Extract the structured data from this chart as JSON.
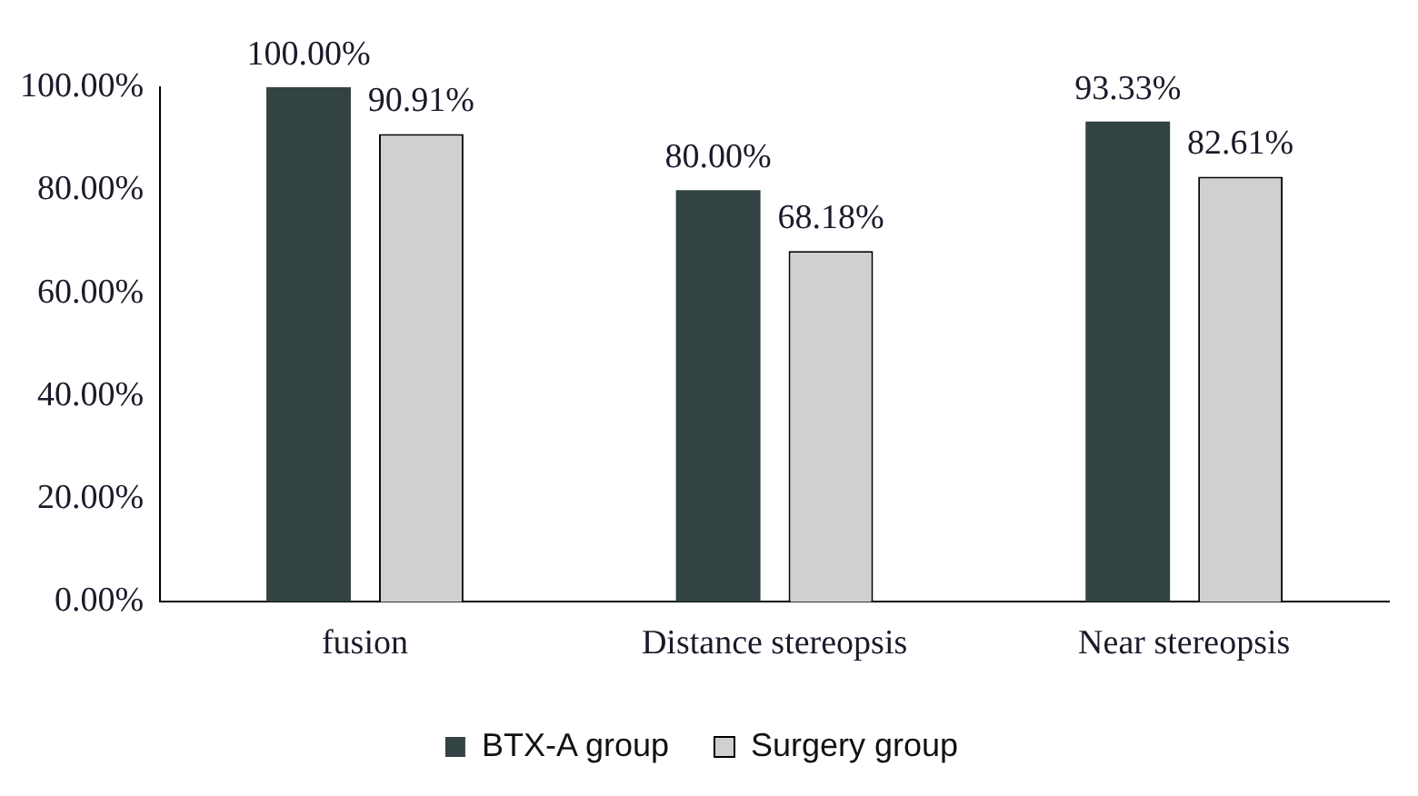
{
  "chart_data": {
    "type": "bar",
    "categories": [
      "fusion",
      "Distance stereopsis",
      "Near stereopsis"
    ],
    "series": [
      {
        "name": "BTX-A group",
        "color": "#334242",
        "values": [
          100,
          80,
          93.33
        ],
        "value_labels": [
          "100.00%",
          "80.00%",
          "93.33%"
        ]
      },
      {
        "name": "Surgery group",
        "color": "#d0d0d0",
        "values": [
          90.91,
          68.18,
          82.61
        ],
        "value_labels": [
          "90.91%",
          "68.18%",
          "82.61%"
        ]
      }
    ],
    "ylim": [
      0,
      100
    ],
    "yticks": [
      {
        "value": 0,
        "label": "0.00%"
      },
      {
        "value": 20,
        "label": "20.00%"
      },
      {
        "value": 40,
        "label": "40.00%"
      },
      {
        "value": 60,
        "label": "60.00%"
      },
      {
        "value": 80,
        "label": "80.00%"
      },
      {
        "value": 100,
        "label": "100.00%"
      }
    ],
    "grid": false,
    "legend": "bottom"
  }
}
